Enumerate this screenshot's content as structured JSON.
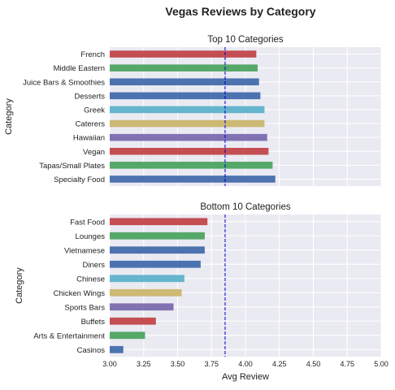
{
  "chart_data": {
    "title": "Vegas Reviews by Category",
    "xlabel": "Avg Review",
    "xlim": [
      3.0,
      5.0
    ],
    "xticks": [
      "3.00",
      "3.25",
      "3.50",
      "3.75",
      "4.00",
      "4.25",
      "4.50",
      "4.75",
      "5.00"
    ],
    "reference_line": {
      "value": 3.85,
      "color": "#0000cc",
      "style": "dashed"
    },
    "colors": [
      "#4c72b0",
      "#55a868",
      "#c44e52",
      "#8172b2",
      "#ccb974",
      "#64b5cd"
    ],
    "grid": true,
    "background": "#eaeaf2",
    "panels": [
      {
        "type": "bar",
        "orientation": "horizontal",
        "title": "Top 10 Categories",
        "ylabel": "Category",
        "categories": [
          "French",
          "Middle Eastern",
          "Juice Bars & Smoothies",
          "Desserts",
          "Greek",
          "Caterers",
          "Hawaiian",
          "Vegan",
          "Tapas/Small Plates",
          "Specialty Food"
        ],
        "values": [
          4.08,
          4.09,
          4.1,
          4.11,
          4.14,
          4.14,
          4.16,
          4.17,
          4.2,
          4.22
        ],
        "bar_colors": [
          "#c44e52",
          "#55a868",
          "#4c72b0",
          "#4c72b0",
          "#64b5cd",
          "#ccb974",
          "#8172b2",
          "#c44e52",
          "#55a868",
          "#4c72b0"
        ],
        "show_xticks": false
      },
      {
        "type": "bar",
        "orientation": "horizontal",
        "title": "Bottom 10 Categories",
        "ylabel": "Category",
        "categories": [
          "Fast Food",
          "Lounges",
          "Vietnamese",
          "Diners",
          "Chinese",
          "Chicken Wings",
          "Sports Bars",
          "Buffets",
          "Arts & Entertainment",
          "Casinos"
        ],
        "values": [
          3.72,
          3.7,
          3.7,
          3.67,
          3.55,
          3.53,
          3.47,
          3.34,
          3.26,
          3.1
        ],
        "bar_colors": [
          "#c44e52",
          "#55a868",
          "#4c72b0",
          "#4c72b0",
          "#64b5cd",
          "#ccb974",
          "#8172b2",
          "#c44e52",
          "#55a868",
          "#4c72b0"
        ],
        "show_xticks": true
      }
    ]
  }
}
